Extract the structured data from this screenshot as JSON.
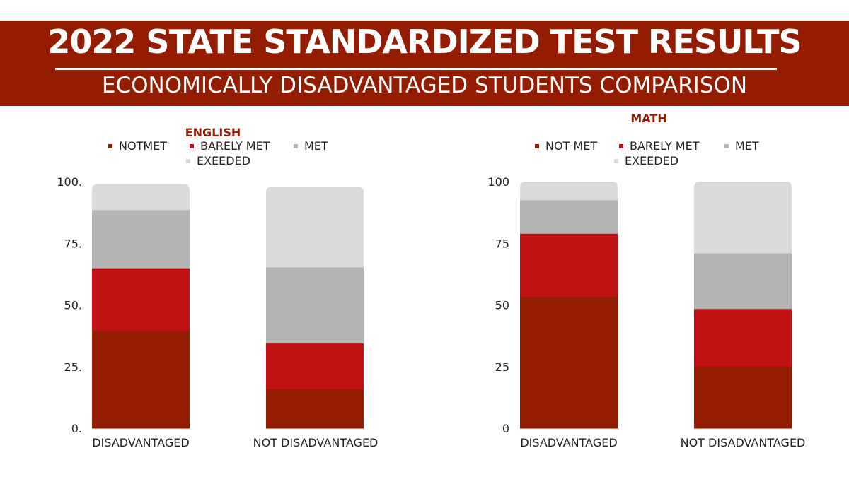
{
  "header": {
    "title": "2022 STATE STANDARDIZED TEST RESULTS",
    "subtitle": "ECONOMICALLY DISADVANTAGED STUDENTS COMPARISON"
  },
  "colors": {
    "banner": "#941c00",
    "not_met": "#941c00",
    "barely_met": "#c01214",
    "met": "#b5b5b5",
    "exceeded": "#dadada",
    "title_text": "#941c00",
    "axis_text": "#222222"
  },
  "chart_data": [
    {
      "type": "bar",
      "stacked": true,
      "title": "ENGLISH",
      "categories": [
        "DISADVANTAGED",
        "NOT DISADVANTAGED"
      ],
      "y_ticks": [
        "0.",
        "25.",
        "50.",
        "75.",
        "100."
      ],
      "ylim": [
        0,
        100
      ],
      "legend_position": "top",
      "grid": false,
      "series": [
        {
          "name": "NOTMET",
          "values": [
            39.5,
            16
          ]
        },
        {
          "name": "BARELY MET",
          "values": [
            25.5,
            18.5
          ]
        },
        {
          "name": "MET",
          "values": [
            23.5,
            30.8
          ]
        },
        {
          "name": "EXEEDED",
          "values": [
            10.5,
            32.7
          ]
        }
      ]
    },
    {
      "type": "bar",
      "stacked": true,
      "title": "MATH",
      "categories": [
        "DISADVANTAGED",
        "NOT DISADVANTAGED"
      ],
      "y_ticks": [
        "0",
        "25",
        "50",
        "75",
        "100"
      ],
      "ylim": [
        0,
        100
      ],
      "legend_position": "top",
      "grid": false,
      "series": [
        {
          "name": "NOT MET",
          "values": [
            53.5,
            25
          ]
        },
        {
          "name": "BARELY MET",
          "values": [
            25.5,
            23.5
          ]
        },
        {
          "name": "MET",
          "values": [
            13.5,
            22.5
          ]
        },
        {
          "name": "EXEEDED",
          "values": [
            7.5,
            29
          ]
        }
      ]
    }
  ]
}
